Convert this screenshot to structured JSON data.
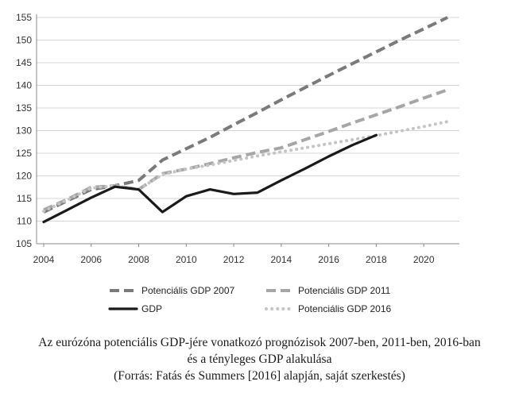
{
  "chart_data": {
    "type": "line",
    "title": "",
    "xlabel": "",
    "ylabel": "",
    "xlim": [
      2003.7,
      2021.5
    ],
    "ylim": [
      105,
      155
    ],
    "x_ticks": [
      2004,
      2006,
      2008,
      2010,
      2012,
      2014,
      2016,
      2018,
      2020
    ],
    "y_ticks": [
      105,
      110,
      115,
      120,
      125,
      130,
      135,
      140,
      145,
      150,
      155
    ],
    "grid": "horizontal",
    "legend": "bottom",
    "series": [
      {
        "name": "Potenciális GDP 2007",
        "color": "#7a7a7a",
        "style": "dashed",
        "points": [
          [
            2004,
            112
          ],
          [
            2005,
            114.5
          ],
          [
            2006,
            117
          ],
          [
            2007,
            117.8
          ],
          [
            2008,
            119
          ],
          [
            2009,
            123.5
          ],
          [
            2010,
            126
          ],
          [
            2011,
            128.5
          ],
          [
            2012,
            131.3
          ],
          [
            2013,
            134
          ],
          [
            2014,
            136.8
          ],
          [
            2015,
            139.5
          ],
          [
            2016,
            142.2
          ],
          [
            2017,
            144.8
          ],
          [
            2018,
            147.4
          ],
          [
            2019,
            150
          ],
          [
            2020,
            152.5
          ],
          [
            2021,
            155
          ]
        ]
      },
      {
        "name": "Potenciális GDP 2011",
        "color": "#a6a6a6",
        "style": "dashed",
        "points": [
          [
            2004,
            112.5
          ],
          [
            2005,
            114.8
          ],
          [
            2006,
            117.5
          ],
          [
            2007,
            117.8
          ],
          [
            2008,
            117
          ],
          [
            2009,
            120.5
          ],
          [
            2010,
            121.5
          ],
          [
            2011,
            122.7
          ],
          [
            2012,
            124
          ],
          [
            2013,
            125.2
          ],
          [
            2014,
            126.2
          ],
          [
            2015,
            128
          ],
          [
            2016,
            129.8
          ],
          [
            2017,
            131.7
          ],
          [
            2018,
            133.5
          ],
          [
            2019,
            135.3
          ],
          [
            2020,
            137.2
          ],
          [
            2021,
            139
          ]
        ]
      },
      {
        "name": "GDP",
        "color": "#1a1a1a",
        "style": "solid",
        "points": [
          [
            2004,
            109.8
          ],
          [
            2005,
            112.5
          ],
          [
            2006,
            115.2
          ],
          [
            2007,
            117.6
          ],
          [
            2008,
            117
          ],
          [
            2009,
            112
          ],
          [
            2010,
            115.5
          ],
          [
            2011,
            117
          ],
          [
            2012,
            116
          ],
          [
            2013,
            116.3
          ],
          [
            2014,
            119
          ],
          [
            2015,
            121.6
          ],
          [
            2016,
            124.3
          ],
          [
            2017,
            126.8
          ],
          [
            2018,
            129
          ]
        ]
      },
      {
        "name": "Potenciális GDP 2016",
        "color": "#c4c4c4",
        "style": "dotted",
        "points": [
          [
            2004,
            112.2
          ],
          [
            2005,
            114.7
          ],
          [
            2006,
            117.3
          ],
          [
            2007,
            117.8
          ],
          [
            2008,
            117
          ],
          [
            2009,
            120.3
          ],
          [
            2010,
            121.5
          ],
          [
            2011,
            122.4
          ],
          [
            2012,
            123.4
          ],
          [
            2013,
            124.4
          ],
          [
            2014,
            125.3
          ],
          [
            2015,
            126.2
          ],
          [
            2016,
            127.1
          ],
          [
            2017,
            128
          ],
          [
            2018,
            128.9
          ],
          [
            2019,
            129.9
          ],
          [
            2020,
            130.9
          ],
          [
            2021,
            132
          ]
        ]
      }
    ]
  },
  "caption": {
    "line1": "Az eurózóna potenciális GDP-jére vonatkozó prognózisok 2007-ben, 2011-ben, 2016-ban",
    "line2": "és a tényleges GDP alakulása",
    "line3": "(Forrás: Fatás és Summers [2016] alapján, saját szerkestés)"
  }
}
